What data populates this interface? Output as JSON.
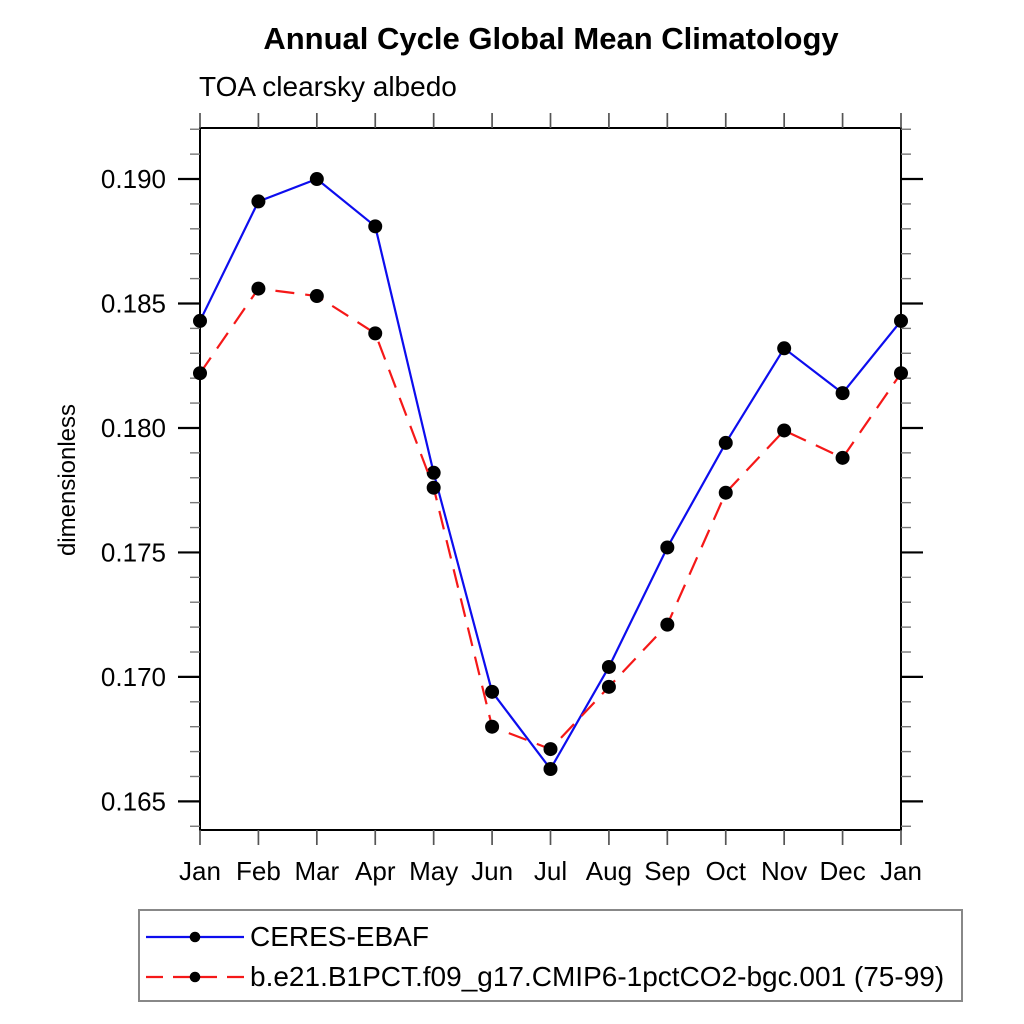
{
  "page": {
    "background_color": "#ffffff"
  },
  "chart_data": {
    "type": "line",
    "title": "Annual Cycle Global Mean Climatology",
    "subtitle": "TOA clearsky albedo",
    "xlabel": "",
    "ylabel": "dimensionless",
    "x_labels": [
      "Jan",
      "Feb",
      "Mar",
      "Apr",
      "May",
      "Jun",
      "Jul",
      "Aug",
      "Sep",
      "Oct",
      "Nov",
      "Dec",
      "Jan"
    ],
    "ylim": [
      0.16385,
      0.19205
    ],
    "y_major_ticks": [
      0.165,
      0.17,
      0.175,
      0.18,
      0.185,
      0.19
    ],
    "y_major_tick_labels": [
      "0.165",
      "0.170",
      "0.175",
      "0.180",
      "0.185",
      "0.190"
    ],
    "y_minor_tick_step": 0.001,
    "grid": false,
    "legend_position": "bottom-left-boxed",
    "axis_color": "#000000",
    "marker_color": "#000000",
    "series": [
      {
        "name": "CERES-EBAF",
        "color": "#0d0dee",
        "line_style": "solid",
        "marker": "filled-circle",
        "values": [
          0.1843,
          0.1891,
          0.19,
          0.1881,
          0.1782,
          0.1694,
          0.1663,
          0.1704,
          0.1752,
          0.1794,
          0.1832,
          0.1814,
          0.1843
        ]
      },
      {
        "name": "b.e21.B1PCT.f09_g17.CMIP6-1pctCO2-bgc.001 (75-99)",
        "color": "#f51818",
        "line_style": "dashed",
        "marker": "filled-circle",
        "values": [
          0.1822,
          0.1856,
          0.1853,
          0.1838,
          0.1776,
          0.168,
          0.1671,
          0.1696,
          0.1721,
          0.1774,
          0.1799,
          0.1788,
          0.1822
        ]
      }
    ]
  }
}
